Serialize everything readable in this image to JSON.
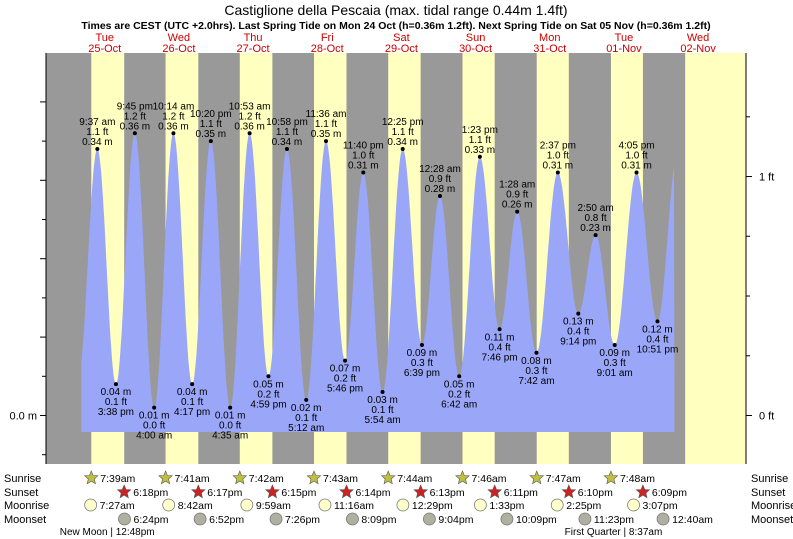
{
  "title": "Castiglione della Pescaia (max. tidal range 0.44m 1.4ft)",
  "subtitle": "Times are CEST (UTC +2.0hrs). Last Spring Tide on Mon 24 Oct (h=0.36m 1.2ft). Next Spring Tide on Sat 05 Nov (h=0.36m 1.2ft)",
  "colors": {
    "night": "#999999",
    "day": "#ffffc0",
    "water": "#9aa6f8",
    "accent_red": "#cc0000",
    "sun": "#bfbf40",
    "sunset": "#cc2222",
    "moonrise": "#ffffcc",
    "moonset": "#b0b0a0"
  },
  "days": [
    {
      "dow": "Tue",
      "date": "25-Oct"
    },
    {
      "dow": "Wed",
      "date": "26-Oct"
    },
    {
      "dow": "Thu",
      "date": "27-Oct"
    },
    {
      "dow": "Fri",
      "date": "28-Oct"
    },
    {
      "dow": "Sat",
      "date": "29-Oct"
    },
    {
      "dow": "Sun",
      "date": "30-Oct"
    },
    {
      "dow": "Mon",
      "date": "31-Oct"
    },
    {
      "dow": "Tue",
      "date": "01-Nov"
    },
    {
      "dow": "Wed",
      "date": "02-Nov"
    }
  ],
  "row_labels": {
    "sunrise": "Sunrise",
    "sunset": "Sunset",
    "moonrise": "Moonrise",
    "moonset": "Moonset"
  },
  "astro": {
    "sunrise": [
      "7:39am",
      "7:41am",
      "7:42am",
      "7:43am",
      "7:44am",
      "7:46am",
      "7:47am",
      "7:48am"
    ],
    "sunset": [
      "6:18pm",
      "6:17pm",
      "6:15pm",
      "6:14pm",
      "6:13pm",
      "6:11pm",
      "6:10pm",
      "6:09pm"
    ],
    "moonrise": [
      "7:27am",
      "8:42am",
      "9:59am",
      "11:16am",
      "12:29pm",
      "1:33pm",
      "2:25pm",
      "3:07pm"
    ],
    "moonset": [
      "6:24pm",
      "6:52pm",
      "7:26pm",
      "8:09pm",
      "9:04pm",
      "10:09pm",
      "11:23pm",
      "12:40am"
    ]
  },
  "moon_phases": [
    {
      "label": "New Moon | 12:48pm"
    },
    {
      "label": "First Quarter | 8:37am"
    }
  ],
  "chart_data": {
    "type": "area",
    "title": "Castiglione della Pescaia (max. tidal range 0.44m 1.4ft)",
    "y_unit_left": "m",
    "y_unit_right": "ft",
    "left_ticks": [
      {
        "value": 0,
        "label": "0.0 m"
      }
    ],
    "right_ticks": [
      {
        "value": 0,
        "label": "0 ft"
      },
      {
        "value": 0.3048,
        "label": "1 ft"
      }
    ],
    "ylim": [
      -0.07,
      0.44
    ],
    "x_start": "2022-10-24 17:00",
    "x_end": "2022-11-03 03:30",
    "night_periods": [
      [
        "2022-10-24 17:00",
        "2022-10-25 07:39"
      ],
      [
        "2022-10-25 18:18",
        "2022-10-26 07:41"
      ],
      [
        "2022-10-26 18:17",
        "2022-10-27 07:42"
      ],
      [
        "2022-10-27 18:15",
        "2022-10-28 07:43"
      ],
      [
        "2022-10-28 18:14",
        "2022-10-29 07:44"
      ],
      [
        "2022-10-29 18:13",
        "2022-10-30 07:46"
      ],
      [
        "2022-10-30 18:11",
        "2022-10-31 07:47"
      ],
      [
        "2022-10-31 18:10",
        "2022-11-01 07:48"
      ],
      [
        "2022-11-01 18:09",
        "2022-11-02 07:49"
      ]
    ],
    "day_label_times": [
      "2022-10-25 12:00",
      "2022-10-26 12:00",
      "2022-10-27 12:00",
      "2022-10-28 12:00",
      "2022-10-29 12:00",
      "2022-10-30 12:00",
      "2022-10-31 12:00",
      "2022-11-01 12:00",
      "2022-11-02 12:00"
    ],
    "astro_times": {
      "sunrise": [
        "2022-10-25 07:39",
        "2022-10-26 07:41",
        "2022-10-27 07:42",
        "2022-10-28 07:43",
        "2022-10-29 07:44",
        "2022-10-30 07:46",
        "2022-10-31 07:47",
        "2022-11-01 07:48"
      ],
      "sunset": [
        "2022-10-25 18:18",
        "2022-10-26 18:17",
        "2022-10-27 18:15",
        "2022-10-28 18:14",
        "2022-10-29 18:13",
        "2022-10-30 18:11",
        "2022-10-31 18:10",
        "2022-11-01 18:09"
      ],
      "moonrise": [
        "2022-10-25 07:27",
        "2022-10-26 08:42",
        "2022-10-27 09:59",
        "2022-10-28 11:16",
        "2022-10-29 12:29",
        "2022-10-30 13:33",
        "2022-10-31 14:25",
        "2022-11-01 15:07"
      ],
      "moonset": [
        "2022-10-25 18:24",
        "2022-10-26 18:52",
        "2022-10-27 19:26",
        "2022-10-28 20:09",
        "2022-10-29 21:04",
        "2022-10-30 22:09",
        "2022-10-31 23:23",
        "2022-11-02 00:40"
      ],
      "moon_phases": [
        "2022-10-25 12:48",
        "2022-11-01 08:37"
      ]
    },
    "tides": [
      {
        "t": "2022-10-25 09:37",
        "h": 0.34,
        "time": "9:37 am",
        "ft": "1.1 ft",
        "m": "0.34 m",
        "type": "high"
      },
      {
        "t": "2022-10-25 15:38",
        "h": 0.04,
        "time": "3:38 pm",
        "ft": "0.1 ft",
        "m": "0.04 m",
        "type": "low"
      },
      {
        "t": "2022-10-25 21:45",
        "h": 0.36,
        "time": "9:45 pm",
        "ft": "1.2 ft",
        "m": "0.36 m",
        "type": "high"
      },
      {
        "t": "2022-10-26 04:00",
        "h": 0.01,
        "time": "4:00 am",
        "ft": "0.0 ft",
        "m": "0.01 m",
        "type": "low"
      },
      {
        "t": "2022-10-26 10:14",
        "h": 0.36,
        "time": "10:14 am",
        "ft": "1.2 ft",
        "m": "0.36 m",
        "type": "high"
      },
      {
        "t": "2022-10-26 16:17",
        "h": 0.04,
        "time": "4:17 pm",
        "ft": "0.1 ft",
        "m": "0.04 m",
        "type": "low"
      },
      {
        "t": "2022-10-26 22:20",
        "h": 0.35,
        "time": "10:20 pm",
        "ft": "1.1 ft",
        "m": "0.35 m",
        "type": "high"
      },
      {
        "t": "2022-10-27 04:35",
        "h": 0.01,
        "time": "4:35 am",
        "ft": "0.0 ft",
        "m": "0.01 m",
        "type": "low"
      },
      {
        "t": "2022-10-27 10:53",
        "h": 0.36,
        "time": "10:53 am",
        "ft": "1.2 ft",
        "m": "0.36 m",
        "type": "high"
      },
      {
        "t": "2022-10-27 16:59",
        "h": 0.05,
        "time": "4:59 pm",
        "ft": "0.2 ft",
        "m": "0.05 m",
        "type": "low"
      },
      {
        "t": "2022-10-27 22:58",
        "h": 0.34,
        "time": "10:58 pm",
        "ft": "1.1 ft",
        "m": "0.34 m",
        "type": "high"
      },
      {
        "t": "2022-10-28 05:12",
        "h": 0.02,
        "time": "5:12 am",
        "ft": "0.1 ft",
        "m": "0.02 m",
        "type": "low"
      },
      {
        "t": "2022-10-28 11:36",
        "h": 0.35,
        "time": "11:36 am",
        "ft": "1.1 ft",
        "m": "0.35 m",
        "type": "high"
      },
      {
        "t": "2022-10-28 17:46",
        "h": 0.07,
        "time": "5:46 pm",
        "ft": "0.2 ft",
        "m": "0.07 m",
        "type": "low"
      },
      {
        "t": "2022-10-28 23:40",
        "h": 0.31,
        "time": "11:40 pm",
        "ft": "1.0 ft",
        "m": "0.31 m",
        "type": "high"
      },
      {
        "t": "2022-10-29 05:54",
        "h": 0.03,
        "time": "5:54 am",
        "ft": "0.1 ft",
        "m": "0.03 m",
        "type": "low"
      },
      {
        "t": "2022-10-29 12:25",
        "h": 0.34,
        "time": "12:25 pm",
        "ft": "1.1 ft",
        "m": "0.34 m",
        "type": "high"
      },
      {
        "t": "2022-10-29 18:39",
        "h": 0.09,
        "time": "6:39 pm",
        "ft": "0.3 ft",
        "m": "0.09 m",
        "type": "low"
      },
      {
        "t": "2022-10-30 00:28",
        "h": 0.28,
        "time": "12:28 am",
        "ft": "0.9 ft",
        "m": "0.28 m",
        "type": "high"
      },
      {
        "t": "2022-10-30 06:42",
        "h": 0.05,
        "time": "6:42 am",
        "ft": "0.2 ft",
        "m": "0.05 m",
        "type": "low"
      },
      {
        "t": "2022-10-30 13:23",
        "h": 0.33,
        "time": "1:23 pm",
        "ft": "1.1 ft",
        "m": "0.33 m",
        "type": "high"
      },
      {
        "t": "2022-10-30 19:46",
        "h": 0.11,
        "time": "7:46 pm",
        "ft": "0.4 ft",
        "m": "0.11 m",
        "type": "low"
      },
      {
        "t": "2022-10-31 01:28",
        "h": 0.26,
        "time": "1:28 am",
        "ft": "0.9 ft",
        "m": "0.26 m",
        "type": "high"
      },
      {
        "t": "2022-10-31 07:42",
        "h": 0.08,
        "time": "7:42 am",
        "ft": "0.3 ft",
        "m": "0.08 m",
        "type": "low"
      },
      {
        "t": "2022-10-31 14:37",
        "h": 0.31,
        "time": "2:37 pm",
        "ft": "1.0 ft",
        "m": "0.31 m",
        "type": "high"
      },
      {
        "t": "2022-10-31 21:14",
        "h": 0.13,
        "time": "9:14 pm",
        "ft": "0.4 ft",
        "m": "0.13 m",
        "type": "low"
      },
      {
        "t": "2022-11-01 02:50",
        "h": 0.23,
        "time": "2:50 am",
        "ft": "0.8 ft",
        "m": "0.23 m",
        "type": "high"
      },
      {
        "t": "2022-11-01 09:01",
        "h": 0.09,
        "time": "9:01 am",
        "ft": "0.3 ft",
        "m": "0.09 m",
        "type": "low"
      },
      {
        "t": "2022-11-01 16:05",
        "h": 0.31,
        "time": "4:05 pm",
        "ft": "1.0 ft",
        "m": "0.31 m",
        "type": "high"
      },
      {
        "t": "2022-11-01 22:51",
        "h": 0.12,
        "time": "10:51 pm",
        "ft": "0.4 ft",
        "m": "0.12 m",
        "type": "low"
      }
    ]
  }
}
